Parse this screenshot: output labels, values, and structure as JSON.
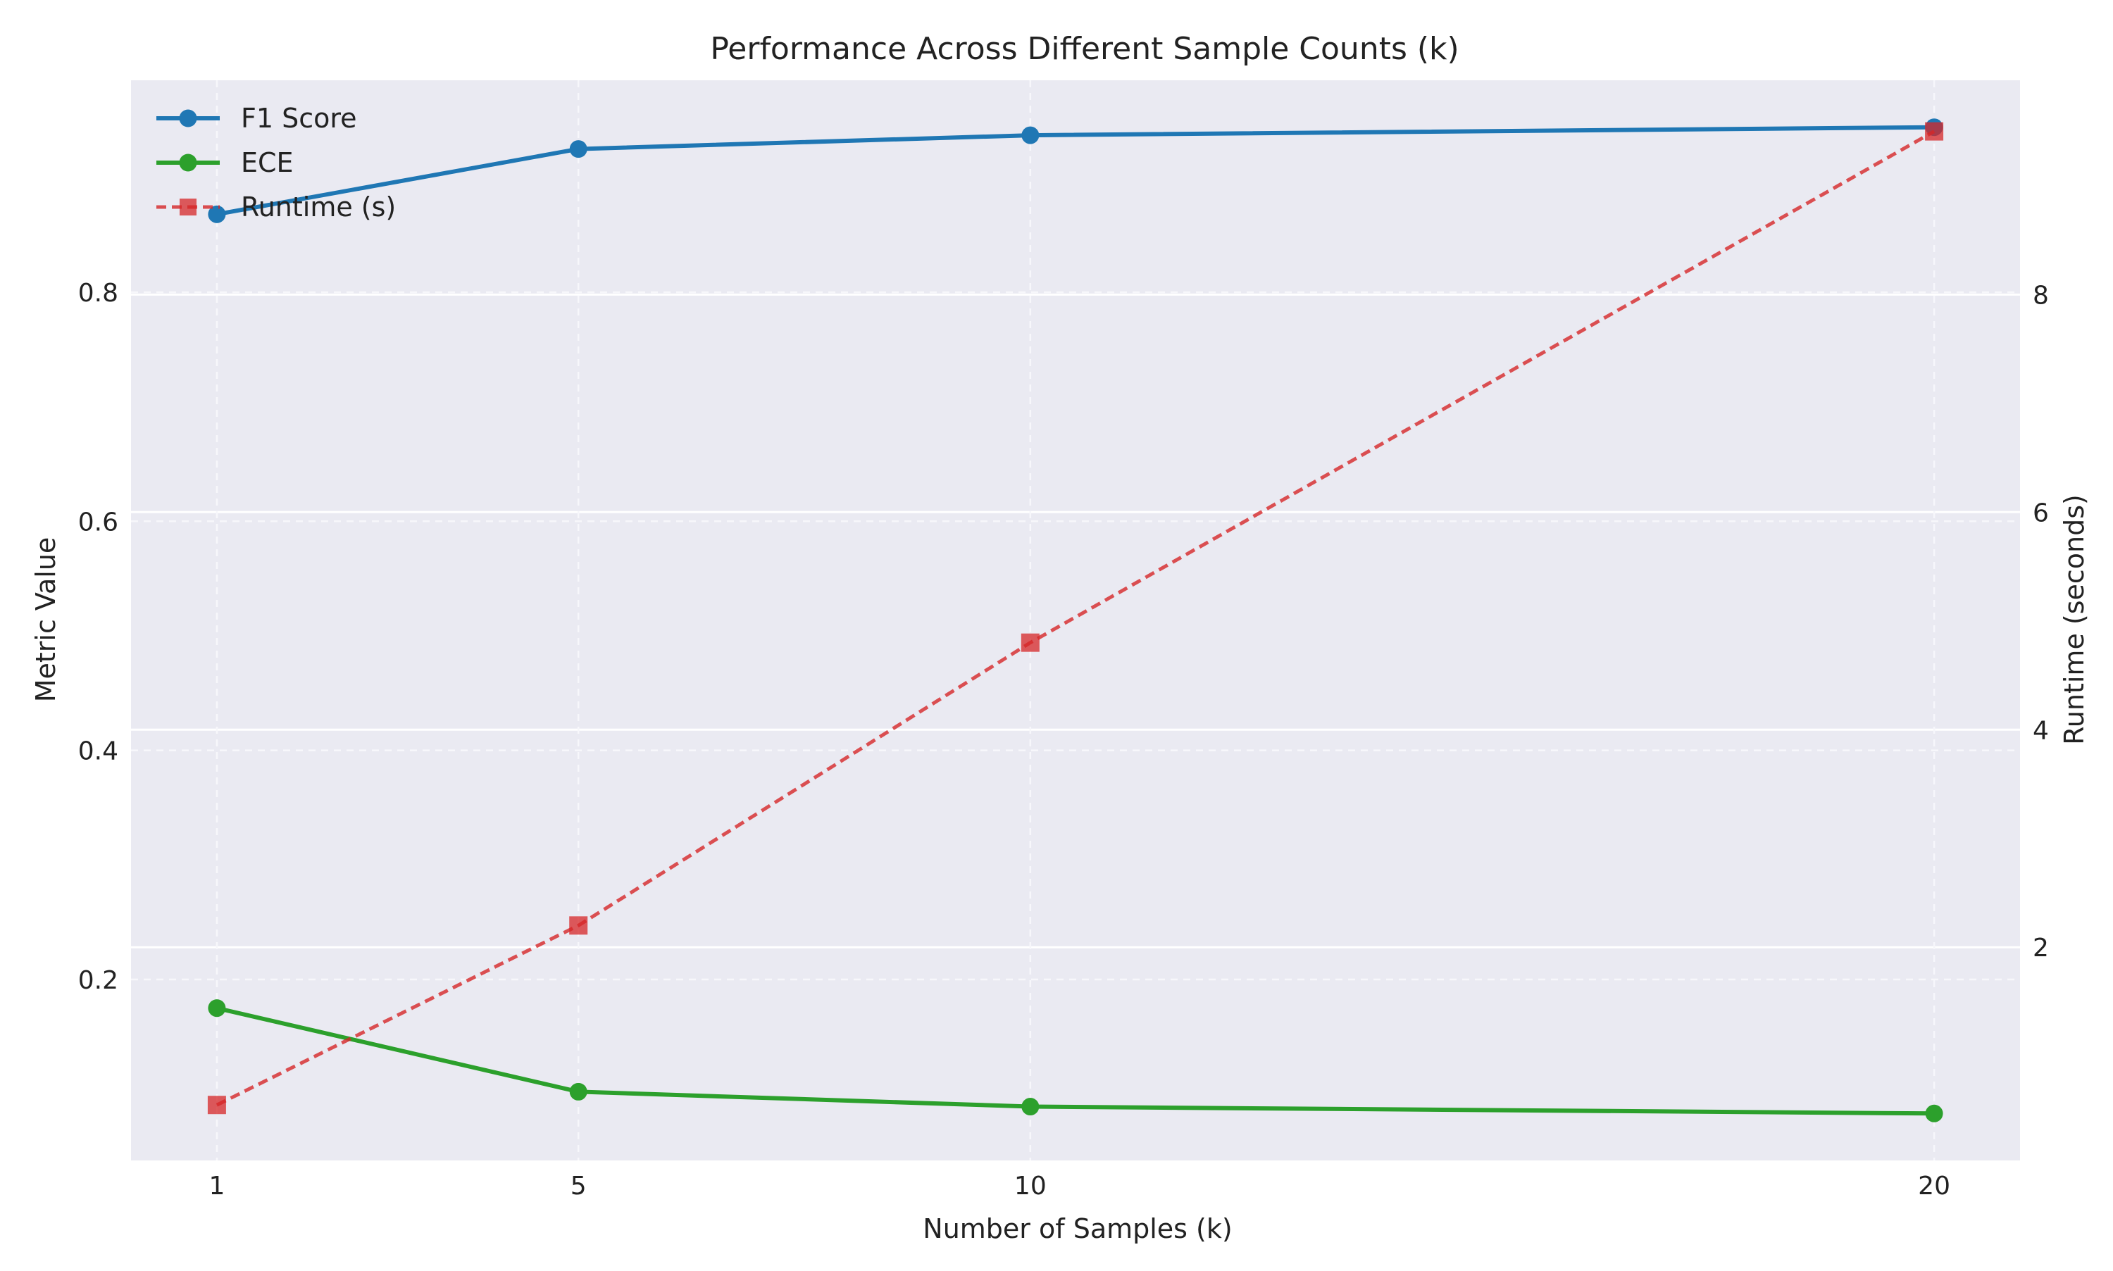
{
  "chart_data": {
    "type": "line",
    "title": "Performance Across Different Sample Counts (k)",
    "xlabel": "Number of Samples (k)",
    "ylabel": "Metric Value",
    "y2label": "Runtime (seconds)",
    "x": [
      1,
      5,
      10,
      20
    ],
    "x_ticks": [
      "1",
      "5",
      "10",
      "20"
    ],
    "xlim": [
      0.05,
      20.95
    ],
    "ylim": [
      0.042,
      0.985
    ],
    "y_ticks": [
      0.2,
      0.4,
      0.6,
      0.8
    ],
    "y_tick_labels": [
      "0.2",
      "0.4",
      "0.6",
      "0.8"
    ],
    "y2lim": [
      0.04,
      9.97
    ],
    "y2_ticks": [
      2,
      4,
      6,
      8
    ],
    "y2_tick_labels": [
      "2",
      "4",
      "6",
      "8"
    ],
    "grid": true,
    "legend_position": "top-left",
    "series": [
      {
        "name": "F1 Score",
        "axis": "left",
        "values": [
          0.868,
          0.925,
          0.937,
          0.944
        ],
        "color": "#1f77b4",
        "style": "solid",
        "marker": "circle"
      },
      {
        "name": "ECE",
        "axis": "left",
        "values": [
          0.175,
          0.102,
          0.089,
          0.083
        ],
        "color": "#2ca02c",
        "style": "solid",
        "marker": "circle"
      },
      {
        "name": "Runtime (s)",
        "axis": "right",
        "values": [
          0.55,
          2.2,
          4.8,
          9.5
        ],
        "color": "#d62728",
        "style": "dashed",
        "marker": "square"
      }
    ]
  }
}
